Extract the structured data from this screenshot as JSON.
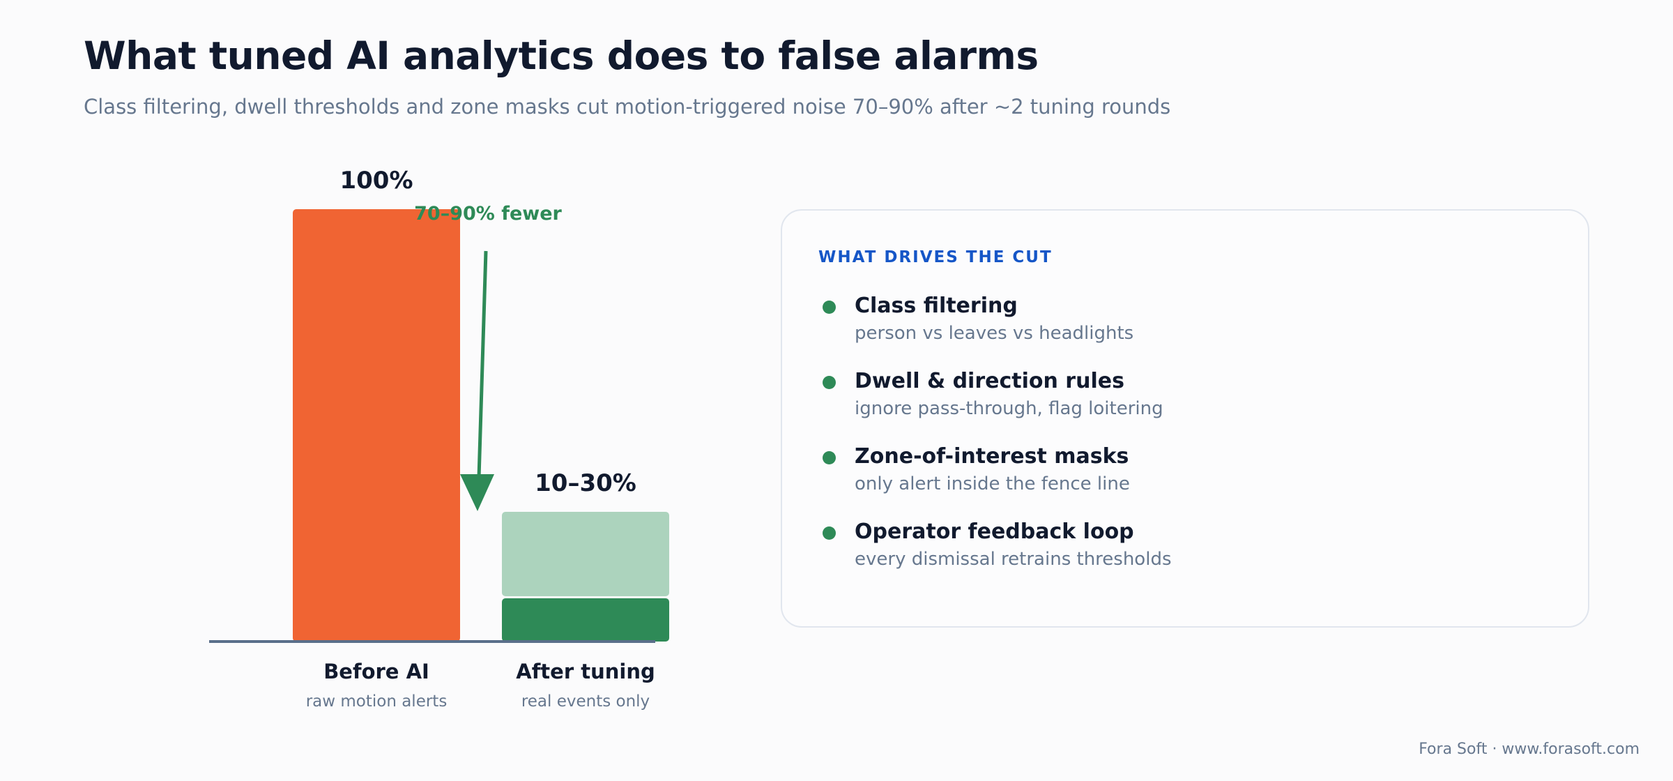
{
  "header": {
    "title": "What tuned AI analytics does to false alarms",
    "subtitle": "Class filtering, dwell thresholds and zone masks cut motion-triggered noise 70–90% after ~2 tuning rounds"
  },
  "chart_data": {
    "type": "bar",
    "categories": [
      "Before AI",
      "After tuning"
    ],
    "category_sublabels": [
      "raw motion alerts",
      "real events only"
    ],
    "unit": "% of alerts",
    "ylim": [
      0,
      100
    ],
    "bars": [
      {
        "category": "Before AI",
        "value": 100,
        "label": "100%",
        "color": "#f06433"
      },
      {
        "category": "After tuning",
        "range": [
          10,
          30
        ],
        "label": "10–30%",
        "color_low": "#2e8a57",
        "color_high": "#acd3bd"
      }
    ],
    "annotation": {
      "text": "70–90% fewer",
      "color": "#2e8a57"
    },
    "grid": false,
    "legend": "none"
  },
  "panel": {
    "heading": "WHAT DRIVES THE CUT",
    "items": [
      {
        "title": "Class filtering",
        "description": "person vs leaves vs headlights"
      },
      {
        "title": "Dwell & direction rules",
        "description": "ignore pass-through, flag loitering"
      },
      {
        "title": "Zone-of-interest masks",
        "description": "only alert inside the fence line"
      },
      {
        "title": "Operator feedback loop",
        "description": "every dismissal retrains thresholds"
      }
    ]
  },
  "footer": {
    "credit": "Fora Soft · www.forasoft.com"
  },
  "colors": {
    "title": "#111a2e",
    "muted": "#66778e",
    "accent_blue": "#1556c7",
    "accent_green": "#2e8a57",
    "accent_orange": "#f06433",
    "axis": "#5a6f8a"
  }
}
